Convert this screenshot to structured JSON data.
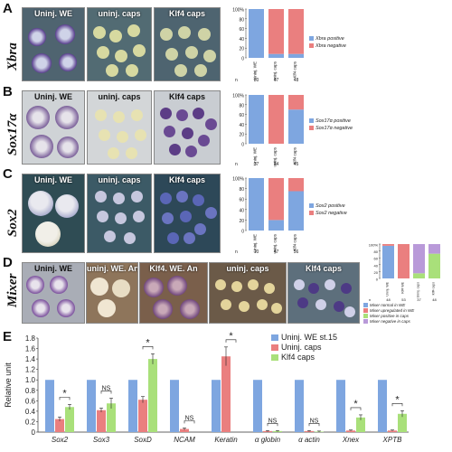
{
  "panels": [
    {
      "letter": "A",
      "gene": "Xbra",
      "images": [
        "Uninj. WE",
        "uninj. caps",
        "Klf4 caps"
      ],
      "legend": [
        "Xbra positive",
        "Xbra negative"
      ],
      "n": [
        "80",
        "47",
        "48"
      ]
    },
    {
      "letter": "B",
      "gene": "Sox17α",
      "images": [
        "Uninj. WE",
        "uninj. caps",
        "Klf4 caps"
      ],
      "legend": [
        "Sox17α positive",
        "Sox17α negative"
      ],
      "n": [
        "37",
        "34",
        "45"
      ]
    },
    {
      "letter": "C",
      "gene": "Sox2",
      "images": [
        "Uninj. WE",
        "uninj. caps",
        "Klf4 caps"
      ],
      "legend": [
        "Sox2 positive",
        "Sox2 negative"
      ],
      "n": [
        "10",
        "47",
        "56"
      ]
    },
    {
      "letter": "D",
      "gene": "Mixer",
      "images": [
        "Uninj. WE",
        "uninj. WE. An",
        "Klf4. WE. An",
        "uninj. caps",
        "Klf4 caps"
      ],
      "legend": [
        "Mixer normal in WE",
        "Mixer upregulated in WE",
        "Mixer positive in caps",
        "Mixer negative in caps"
      ],
      "n": [
        "48",
        "53",
        "37",
        "48"
      ]
    },
    {
      "letter": "E"
    }
  ],
  "chart_data": [
    {
      "type": "bar",
      "stacked": true,
      "categories": [
        "Uninj. WE",
        "uninj. caps",
        "Klf4 caps"
      ],
      "series": [
        {
          "name": "Xbra positive",
          "values": [
            100,
            8,
            8
          ]
        },
        {
          "name": "Xbra negative",
          "values": [
            0,
            92,
            92
          ]
        }
      ],
      "ylim": [
        0,
        100
      ],
      "yticks": [
        "0",
        "20",
        "40",
        "60",
        "80",
        "100%"
      ],
      "colors": [
        "#7ea6e0",
        "#ea7f7f"
      ]
    },
    {
      "type": "bar",
      "stacked": true,
      "categories": [
        "Uninj. WE",
        "uninj. caps",
        "Klf4 caps"
      ],
      "series": [
        {
          "name": "Sox17α positive",
          "values": [
            100,
            0,
            70
          ]
        },
        {
          "name": "Sox17α negative",
          "values": [
            0,
            100,
            30
          ]
        }
      ],
      "ylim": [
        0,
        100
      ],
      "yticks": [
        "0",
        "20",
        "40",
        "60",
        "80",
        "100%"
      ],
      "colors": [
        "#7ea6e0",
        "#ea7f7f"
      ]
    },
    {
      "type": "bar",
      "stacked": true,
      "categories": [
        "Uninj. WE",
        "uninj. caps",
        "Klf4 caps"
      ],
      "series": [
        {
          "name": "Sox2 positive",
          "values": [
            100,
            20,
            75
          ]
        },
        {
          "name": "Sox2 negative",
          "values": [
            0,
            80,
            25
          ]
        }
      ],
      "ylim": [
        0,
        100
      ],
      "yticks": [
        "0",
        "20",
        "40",
        "60",
        "80",
        "100%"
      ],
      "colors": [
        "#7ea6e0",
        "#ea7f7f"
      ]
    },
    {
      "type": "bar",
      "stacked": true,
      "categories": [
        "Uninj. WE",
        "Klf4 WE",
        "Uninj. caps",
        "Klf4 caps"
      ],
      "series": [
        {
          "name": "Mixer normal in WE",
          "values": [
            95,
            0,
            0,
            0
          ]
        },
        {
          "name": "Mixer upregulated in WE",
          "values": [
            5,
            100,
            0,
            0
          ]
        },
        {
          "name": "Mixer positive in caps",
          "values": [
            0,
            0,
            15,
            72
          ]
        },
        {
          "name": "Mixer negative in caps",
          "values": [
            0,
            0,
            85,
            28
          ]
        }
      ],
      "ylim": [
        0,
        100
      ],
      "yticks": [
        "0",
        "20",
        "40",
        "60",
        "80",
        "100%"
      ],
      "colors": [
        "#7ea6e0",
        "#ea7f7f",
        "#a9e07a",
        "#b99ad9"
      ]
    },
    {
      "type": "bar",
      "categories": [
        "Sox2",
        "Sox3",
        "SoxD",
        "NCAM",
        "Keratin",
        "α globin",
        "α actin",
        "Xnex",
        "XPTB"
      ],
      "series": [
        {
          "name": "Uninj. WE st.15",
          "values": [
            1,
            1,
            1,
            1,
            1,
            1,
            1,
            1,
            1
          ]
        },
        {
          "name": "Uninj. caps",
          "values": [
            0.25,
            0.42,
            0.62,
            0.06,
            1.45,
            0.02,
            0.02,
            0.03,
            0.03
          ]
        },
        {
          "name": "Klf4 caps",
          "values": [
            0.48,
            0.55,
            1.4,
            0.0,
            0.0,
            0.02,
            0.01,
            0.28,
            0.35
          ]
        }
      ],
      "errors": [
        [
          0,
          0,
          0,
          0,
          0,
          0,
          0,
          0,
          0
        ],
        [
          0.04,
          0.04,
          0.06,
          0.02,
          0.18,
          0.01,
          0.01,
          0.01,
          0.01
        ],
        [
          0.05,
          0.1,
          0.1,
          0.0,
          0.0,
          0.01,
          0.01,
          0.05,
          0.06
        ]
      ],
      "significance": [
        "*",
        "NS",
        "*",
        "NS",
        "*",
        "NS",
        "NS",
        "*",
        "*"
      ],
      "ylabel": "Relative unit",
      "ylim": [
        0,
        1.8
      ],
      "yticks": [
        "0",
        "0.2",
        "0.4",
        "0.6",
        "0.8",
        "1.0",
        "1.2",
        "1.4",
        "1.6",
        "1.8"
      ],
      "colors": [
        "#7ea6e0",
        "#ea7f7f",
        "#a9e07a"
      ]
    }
  ]
}
